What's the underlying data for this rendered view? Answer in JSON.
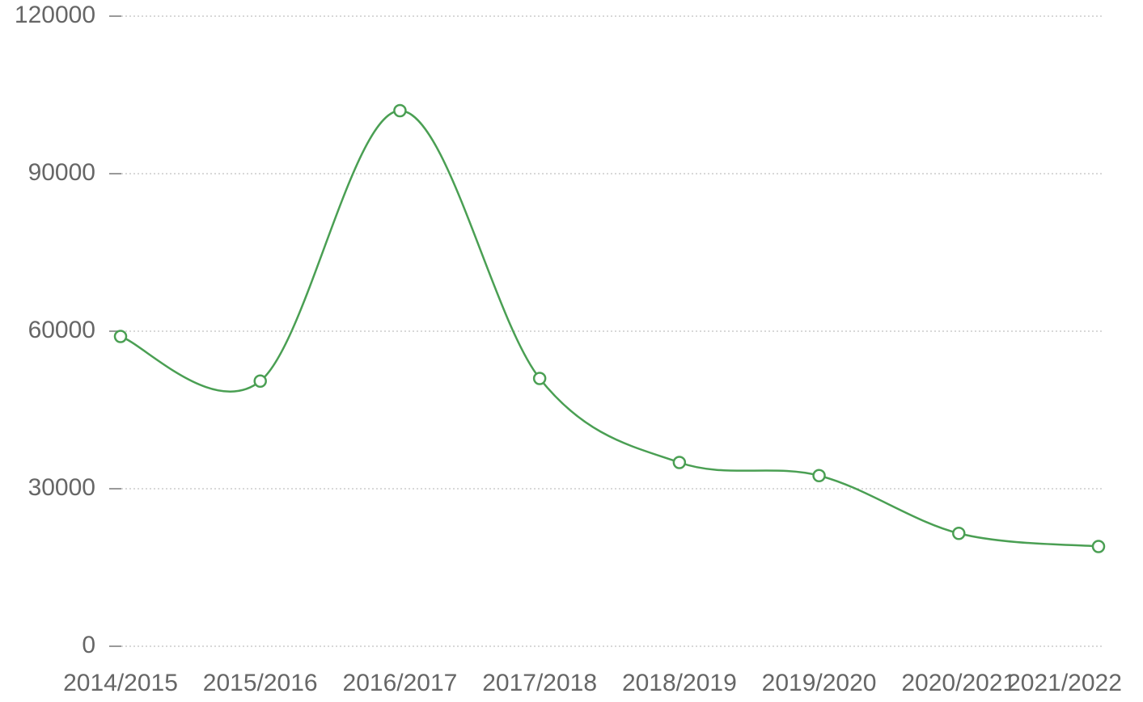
{
  "chart_data": {
    "type": "line",
    "categories": [
      "2014/2015",
      "2015/2016",
      "2016/2017",
      "2017/2018",
      "2018/2019",
      "2019/2020",
      "2020/2021",
      "2021/2022"
    ],
    "series": [
      {
        "color": "#4a9f53",
        "values": [
          59000,
          50500,
          102000,
          51000,
          35000,
          32500,
          21500,
          19000
        ]
      }
    ],
    "ylim": [
      0,
      120000
    ],
    "yticks": [
      0,
      30000,
      60000,
      90000,
      120000
    ],
    "grid": true,
    "smooth": true
  }
}
